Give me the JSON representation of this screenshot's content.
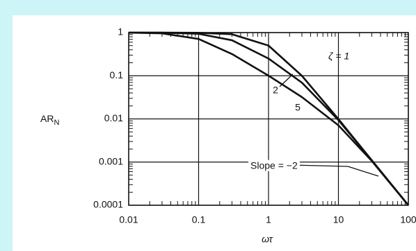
{
  "chart_data": {
    "type": "line",
    "log_x": true,
    "log_y": true,
    "grid": true,
    "y_label": "AR",
    "y_label_sub": "N",
    "x_label": "ωτ",
    "x": [
      0.01,
      0.03,
      0.1,
      0.3,
      1,
      3,
      10,
      30,
      100
    ],
    "series": [
      {
        "name": "ζ = 1",
        "color": "#111111",
        "values": [
          0.9999,
          0.9991,
          0.99,
          0.917,
          0.5,
          0.1,
          0.0099,
          0.0011,
          0.0001
        ]
      },
      {
        "name": "2",
        "color": "#111111",
        "values": [
          0.9993,
          0.9938,
          0.937,
          0.664,
          0.25,
          0.0693,
          0.00937,
          0.0011,
          0.0001
        ]
      },
      {
        "name": "5",
        "color": "#111111",
        "values": [
          0.995,
          0.959,
          0.711,
          0.319,
          0.1005,
          0.0321,
          0.00711,
          0.00106,
          9.95e-05
        ]
      }
    ],
    "annotations": [
      "Slope = −2"
    ],
    "xlim": [
      0.01,
      100
    ],
    "ylim": [
      0.0001,
      1
    ],
    "xticks": [
      0.01,
      0.1,
      1,
      10,
      100
    ],
    "yticks": [
      0.0001,
      0.001,
      0.01,
      0.1,
      1
    ]
  }
}
